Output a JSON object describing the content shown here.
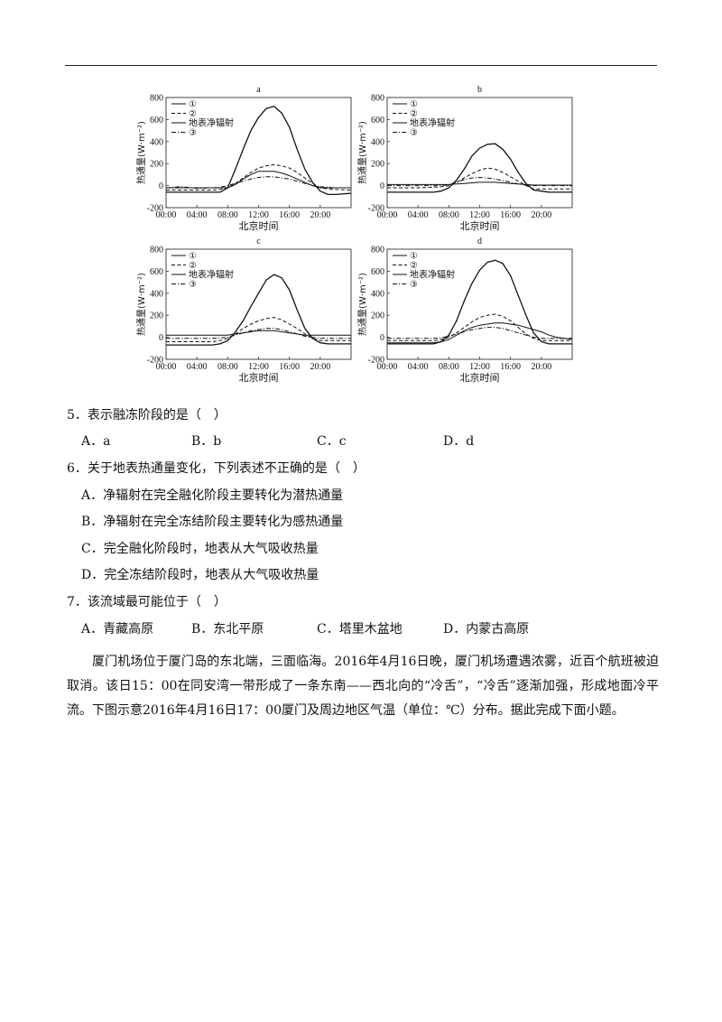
{
  "figure": {
    "charts": [
      {
        "id": "a",
        "label": "a"
      },
      {
        "id": "b",
        "label": "b"
      },
      {
        "id": "c",
        "label": "c"
      },
      {
        "id": "d",
        "label": "d"
      }
    ],
    "legend": [
      "①",
      "②",
      "地表净辐射",
      "③"
    ],
    "ylabel": "热通量(W·m⁻²)",
    "xlabel": "北京时间",
    "yticks": [
      "800",
      "600",
      "400",
      "200",
      "0",
      "-200"
    ],
    "xticks": [
      "00:00",
      "04:00",
      "08:00",
      "12:00",
      "16:00",
      "20:00"
    ]
  },
  "chart_data": [
    {
      "type": "line",
      "title": "a",
      "xlabel": "北京时间",
      "ylabel": "热通量(W·m⁻²)",
      "xlim": [
        0,
        24
      ],
      "ylim": [
        -200,
        800
      ],
      "x": [
        0,
        2,
        4,
        6,
        7,
        8,
        9,
        10,
        11,
        12,
        13,
        14,
        15,
        16,
        17,
        18,
        19,
        20,
        21,
        22,
        24
      ],
      "series": [
        {
          "name": "①",
          "style": "solid",
          "values": [
            -20,
            -20,
            -20,
            -20,
            -20,
            -20,
            10,
            60,
            100,
            130,
            130,
            130,
            115,
            90,
            60,
            30,
            0,
            -20,
            -20,
            -20,
            -20
          ]
        },
        {
          "name": "②",
          "style": "dashed",
          "values": [
            -40,
            -40,
            -40,
            -40,
            -35,
            -20,
            20,
            70,
            120,
            160,
            180,
            190,
            180,
            160,
            120,
            70,
            20,
            -20,
            -30,
            -35,
            -40
          ]
        },
        {
          "name": "地表净辐射",
          "style": "solid",
          "values": [
            -60,
            -60,
            -60,
            -60,
            -60,
            -20,
            150,
            330,
            500,
            620,
            700,
            720,
            660,
            530,
            330,
            150,
            30,
            -50,
            -80,
            -80,
            -70
          ]
        },
        {
          "name": "③",
          "style": "dashdot",
          "values": [
            -20,
            -10,
            -25,
            -20,
            -15,
            0,
            20,
            40,
            60,
            75,
            80,
            80,
            70,
            60,
            40,
            20,
            0,
            -10,
            -15,
            -20,
            -20
          ]
        }
      ]
    },
    {
      "type": "line",
      "title": "b",
      "xlabel": "北京时间",
      "ylabel": "热通量(W·m⁻²)",
      "xlim": [
        0,
        24
      ],
      "ylim": [
        -200,
        800
      ],
      "x": [
        0,
        2,
        4,
        6,
        7,
        8,
        9,
        10,
        11,
        12,
        13,
        14,
        15,
        16,
        17,
        18,
        19,
        20,
        21,
        22,
        24
      ],
      "series": [
        {
          "name": "①",
          "style": "solid",
          "values": [
            10,
            10,
            10,
            10,
            10,
            10,
            15,
            20,
            25,
            30,
            30,
            30,
            25,
            20,
            15,
            10,
            5,
            5,
            5,
            5,
            5
          ]
        },
        {
          "name": "②",
          "style": "dashed",
          "values": [
            -20,
            -20,
            -20,
            -15,
            -10,
            0,
            30,
            70,
            110,
            140,
            160,
            150,
            120,
            80,
            40,
            0,
            -30,
            -30,
            -30,
            -30,
            -30
          ]
        },
        {
          "name": "地表净辐射",
          "style": "solid",
          "values": [
            -60,
            -60,
            -60,
            -60,
            -50,
            -20,
            50,
            150,
            270,
            340,
            375,
            380,
            330,
            240,
            120,
            20,
            -40,
            -50,
            -60,
            -60,
            -60
          ]
        },
        {
          "name": "③",
          "style": "dashdot",
          "values": [
            0,
            0,
            0,
            0,
            0,
            10,
            30,
            55,
            70,
            75,
            70,
            60,
            45,
            30,
            15,
            5,
            0,
            0,
            0,
            0,
            0
          ]
        }
      ]
    },
    {
      "type": "line",
      "title": "c",
      "xlabel": "北京时间",
      "ylabel": "热通量(W·m⁻²)",
      "xlim": [
        0,
        24
      ],
      "ylim": [
        -200,
        800
      ],
      "x": [
        0,
        2,
        4,
        6,
        7,
        8,
        9,
        10,
        11,
        12,
        13,
        14,
        15,
        16,
        17,
        18,
        19,
        20,
        21,
        22,
        24
      ],
      "series": [
        {
          "name": "①",
          "style": "solid",
          "values": [
            20,
            20,
            20,
            20,
            20,
            20,
            30,
            40,
            50,
            60,
            60,
            60,
            50,
            40,
            30,
            20,
            20,
            20,
            20,
            20,
            20
          ]
        },
        {
          "name": "②",
          "style": "dashed",
          "values": [
            -40,
            -40,
            -40,
            -40,
            -30,
            -10,
            30,
            80,
            120,
            150,
            170,
            180,
            160,
            120,
            80,
            30,
            -10,
            -30,
            -30,
            -30,
            -30
          ]
        },
        {
          "name": "地表净辐射",
          "style": "solid",
          "values": [
            -70,
            -70,
            -70,
            -70,
            -60,
            -30,
            50,
            150,
            280,
            400,
            520,
            570,
            540,
            430,
            250,
            80,
            -10,
            -50,
            -60,
            -60,
            -60
          ]
        },
        {
          "name": "③",
          "style": "dashdot",
          "values": [
            -10,
            -10,
            -10,
            -10,
            -5,
            0,
            20,
            40,
            60,
            70,
            80,
            80,
            70,
            50,
            30,
            10,
            0,
            -10,
            -10,
            -10,
            -10
          ]
        }
      ]
    },
    {
      "type": "line",
      "title": "d",
      "xlabel": "北京时间",
      "ylabel": "热通量(W·m⁻²)",
      "xlim": [
        0,
        24
      ],
      "ylim": [
        -200,
        800
      ],
      "x": [
        0,
        2,
        4,
        6,
        7,
        8,
        9,
        10,
        11,
        12,
        13,
        14,
        15,
        16,
        17,
        18,
        19,
        20,
        21,
        22,
        24
      ],
      "series": [
        {
          "name": "①",
          "style": "solid",
          "values": [
            -50,
            -50,
            -50,
            -50,
            -40,
            -20,
            20,
            60,
            90,
            110,
            120,
            130,
            130,
            120,
            110,
            90,
            70,
            50,
            20,
            0,
            -20
          ]
        },
        {
          "name": "②",
          "style": "dashed",
          "values": [
            -30,
            -30,
            -30,
            -30,
            -20,
            0,
            40,
            90,
            140,
            180,
            200,
            210,
            190,
            150,
            90,
            30,
            -10,
            -30,
            -30,
            -30,
            -30
          ]
        },
        {
          "name": "地表净辐射",
          "style": "solid",
          "values": [
            -60,
            -60,
            -60,
            -60,
            -40,
            20,
            150,
            330,
            490,
            610,
            680,
            700,
            670,
            560,
            380,
            200,
            40,
            -40,
            -60,
            -60,
            -60
          ]
        },
        {
          "name": "③",
          "style": "dashdot",
          "values": [
            -10,
            -10,
            -10,
            -10,
            -5,
            10,
            30,
            50,
            70,
            80,
            90,
            90,
            80,
            60,
            40,
            20,
            0,
            -10,
            -10,
            -10,
            -10
          ]
        }
      ]
    }
  ],
  "questions": {
    "q5": {
      "stem": "5．表示融冻阶段的是（　）",
      "options": [
        "A．a",
        "B．b",
        "C．c",
        "D．d"
      ]
    },
    "q6": {
      "stem": "6．关于地表热通量变化，下列表述不正确的是（　）",
      "options": [
        "A．净辐射在完全融化阶段主要转化为潜热通量",
        "B．净辐射在完全冻结阶段主要转化为感热通量",
        "C．完全融化阶段时，地表从大气吸收热量",
        "D．完全冻结阶段时，地表从大气吸收热量"
      ]
    },
    "q7": {
      "stem": "7．该流域最可能位于（　）",
      "options": [
        "A．青藏高原",
        "B．东北平原",
        "C．塔里木盆地",
        "D．内蒙古高原"
      ]
    }
  },
  "passage": "厦门机场位于厦门岛的东北端，三面临海。2016年4月16日晚，厦门机场遭遇浓雾，近百个航班被迫取消。该日15：00在同安湾一带形成了一条东南——西北向的“冷舌”，“冷舌”逐渐加强，形成地面冷平流。下图示意2016年4月16日17：00厦门及周边地区气温（单位：℃）分布。据此完成下面小题。"
}
